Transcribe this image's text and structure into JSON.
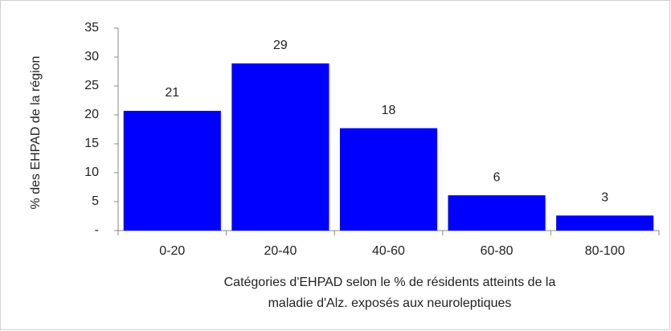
{
  "chart_data": {
    "type": "bar",
    "y_label": "% des EHPAD de la région",
    "x_label": [
      "Catégories d'EHPAD selon le % de résidents atteints de la",
      "maladie d'Alz. exposés aux neuroleptiques"
    ],
    "categories": [
      "0-20",
      "20-40",
      "40-60",
      "60-80",
      "80-100"
    ],
    "values": [
      20.7,
      28.9,
      17.7,
      6.1,
      2.6
    ],
    "value_labels": [
      "21",
      "29",
      "18",
      "6",
      "3"
    ],
    "color": "#0000ff",
    "ylim": [
      0,
      35
    ],
    "yticks": [
      {
        "value": 0,
        "label": "-"
      },
      5,
      10,
      15,
      20,
      25,
      30,
      35
    ]
  }
}
